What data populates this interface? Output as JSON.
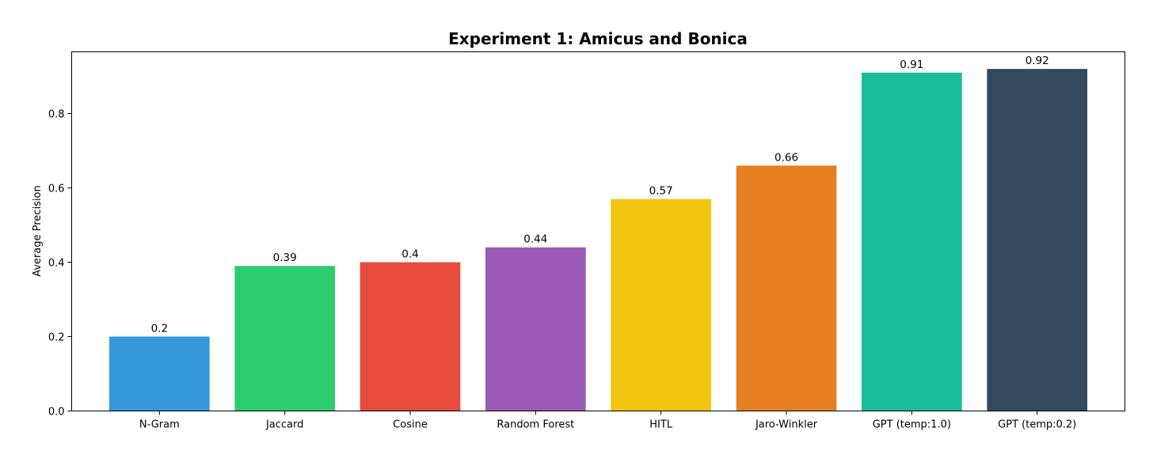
{
  "chart_data": {
    "type": "bar",
    "title": "Experiment 1: Amicus and Bonica",
    "xlabel": "",
    "ylabel": "Average Precision",
    "categories": [
      "N-Gram",
      "Jaccard",
      "Cosine",
      "Random Forest",
      "HITL",
      "Jaro-Winkler",
      "GPT (temp:1.0)",
      "GPT (temp:0.2)"
    ],
    "values": [
      0.2,
      0.39,
      0.4,
      0.44,
      0.57,
      0.66,
      0.91,
      0.92
    ],
    "value_labels": [
      "0.2",
      "0.39",
      "0.4",
      "0.44",
      "0.57",
      "0.66",
      "0.91",
      "0.92"
    ],
    "colors": [
      "#3498db",
      "#2ecc71",
      "#e74c3c",
      "#9b59b6",
      "#f1c40f",
      "#e67e22",
      "#1abc9c",
      "#34495e"
    ],
    "ylim": [
      0,
      0.966
    ],
    "yticks": [
      0.0,
      0.2,
      0.4,
      0.6,
      0.8
    ],
    "ytick_labels": [
      "0.0",
      "0.2",
      "0.4",
      "0.6",
      "0.8"
    ],
    "grid": false,
    "legend": "none"
  }
}
